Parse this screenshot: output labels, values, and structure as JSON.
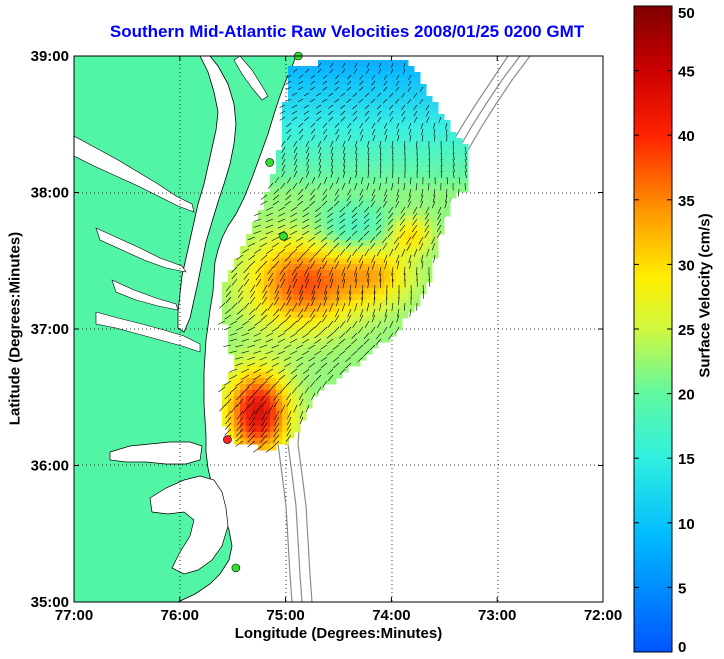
{
  "title": "Southern Mid-Atlantic Raw Velocities 2008/01/25 0200 GMT",
  "xlabel": "Longitude (Degrees:Minutes)",
  "ylabel": "Latitude (Degrees:Minutes)",
  "colorbar_label": "Surface Velocity (cm/s)",
  "x_ticks": [
    {
      "value": -77,
      "label": "77:00"
    },
    {
      "value": -76,
      "label": "76:00"
    },
    {
      "value": -75,
      "label": "75:00"
    },
    {
      "value": -74,
      "label": "74:00"
    },
    {
      "value": -73,
      "label": "73:00"
    },
    {
      "value": -72,
      "label": "72:00"
    }
  ],
  "y_ticks": [
    {
      "value": 35,
      "label": "35:00"
    },
    {
      "value": 36,
      "label": "36:00"
    },
    {
      "value": 37,
      "label": "37:00"
    },
    {
      "value": 38,
      "label": "38:00"
    },
    {
      "value": 39,
      "label": "39:00"
    }
  ],
  "colorbar_ticks": [
    {
      "value": 0,
      "label": "0"
    },
    {
      "value": 5,
      "label": "5"
    },
    {
      "value": 10,
      "label": "10"
    },
    {
      "value": 15,
      "label": "15"
    },
    {
      "value": 20,
      "label": "20"
    },
    {
      "value": 25,
      "label": "25"
    },
    {
      "value": 30,
      "label": "30"
    },
    {
      "value": 35,
      "label": "35"
    },
    {
      "value": 40,
      "label": "40"
    },
    {
      "value": 45,
      "label": "45"
    },
    {
      "value": 50,
      "label": "50"
    }
  ],
  "colors": {
    "land": "#52f5a5",
    "water": "#ffffff",
    "title": "#0000ff",
    "coastline": "#000000",
    "bathymetry": "#8c8c8c",
    "site_green": "#33dd33",
    "site_red": "#ff2222"
  },
  "map": {
    "lon_range": [
      -77,
      -72
    ],
    "lat_range": [
      35,
      39
    ],
    "grid": "dotted",
    "color_scale_range_cm_s": [
      0,
      50
    ],
    "stations": [
      {
        "lon": -74.88,
        "lat": 39.0,
        "color": "green"
      },
      {
        "lon": -75.15,
        "lat": 38.22,
        "color": "green"
      },
      {
        "lon": -75.02,
        "lat": 37.68,
        "color": "green"
      },
      {
        "lon": -75.55,
        "lat": 36.19,
        "color": "red"
      },
      {
        "lon": -75.47,
        "lat": 35.25,
        "color": "green"
      }
    ]
  }
}
